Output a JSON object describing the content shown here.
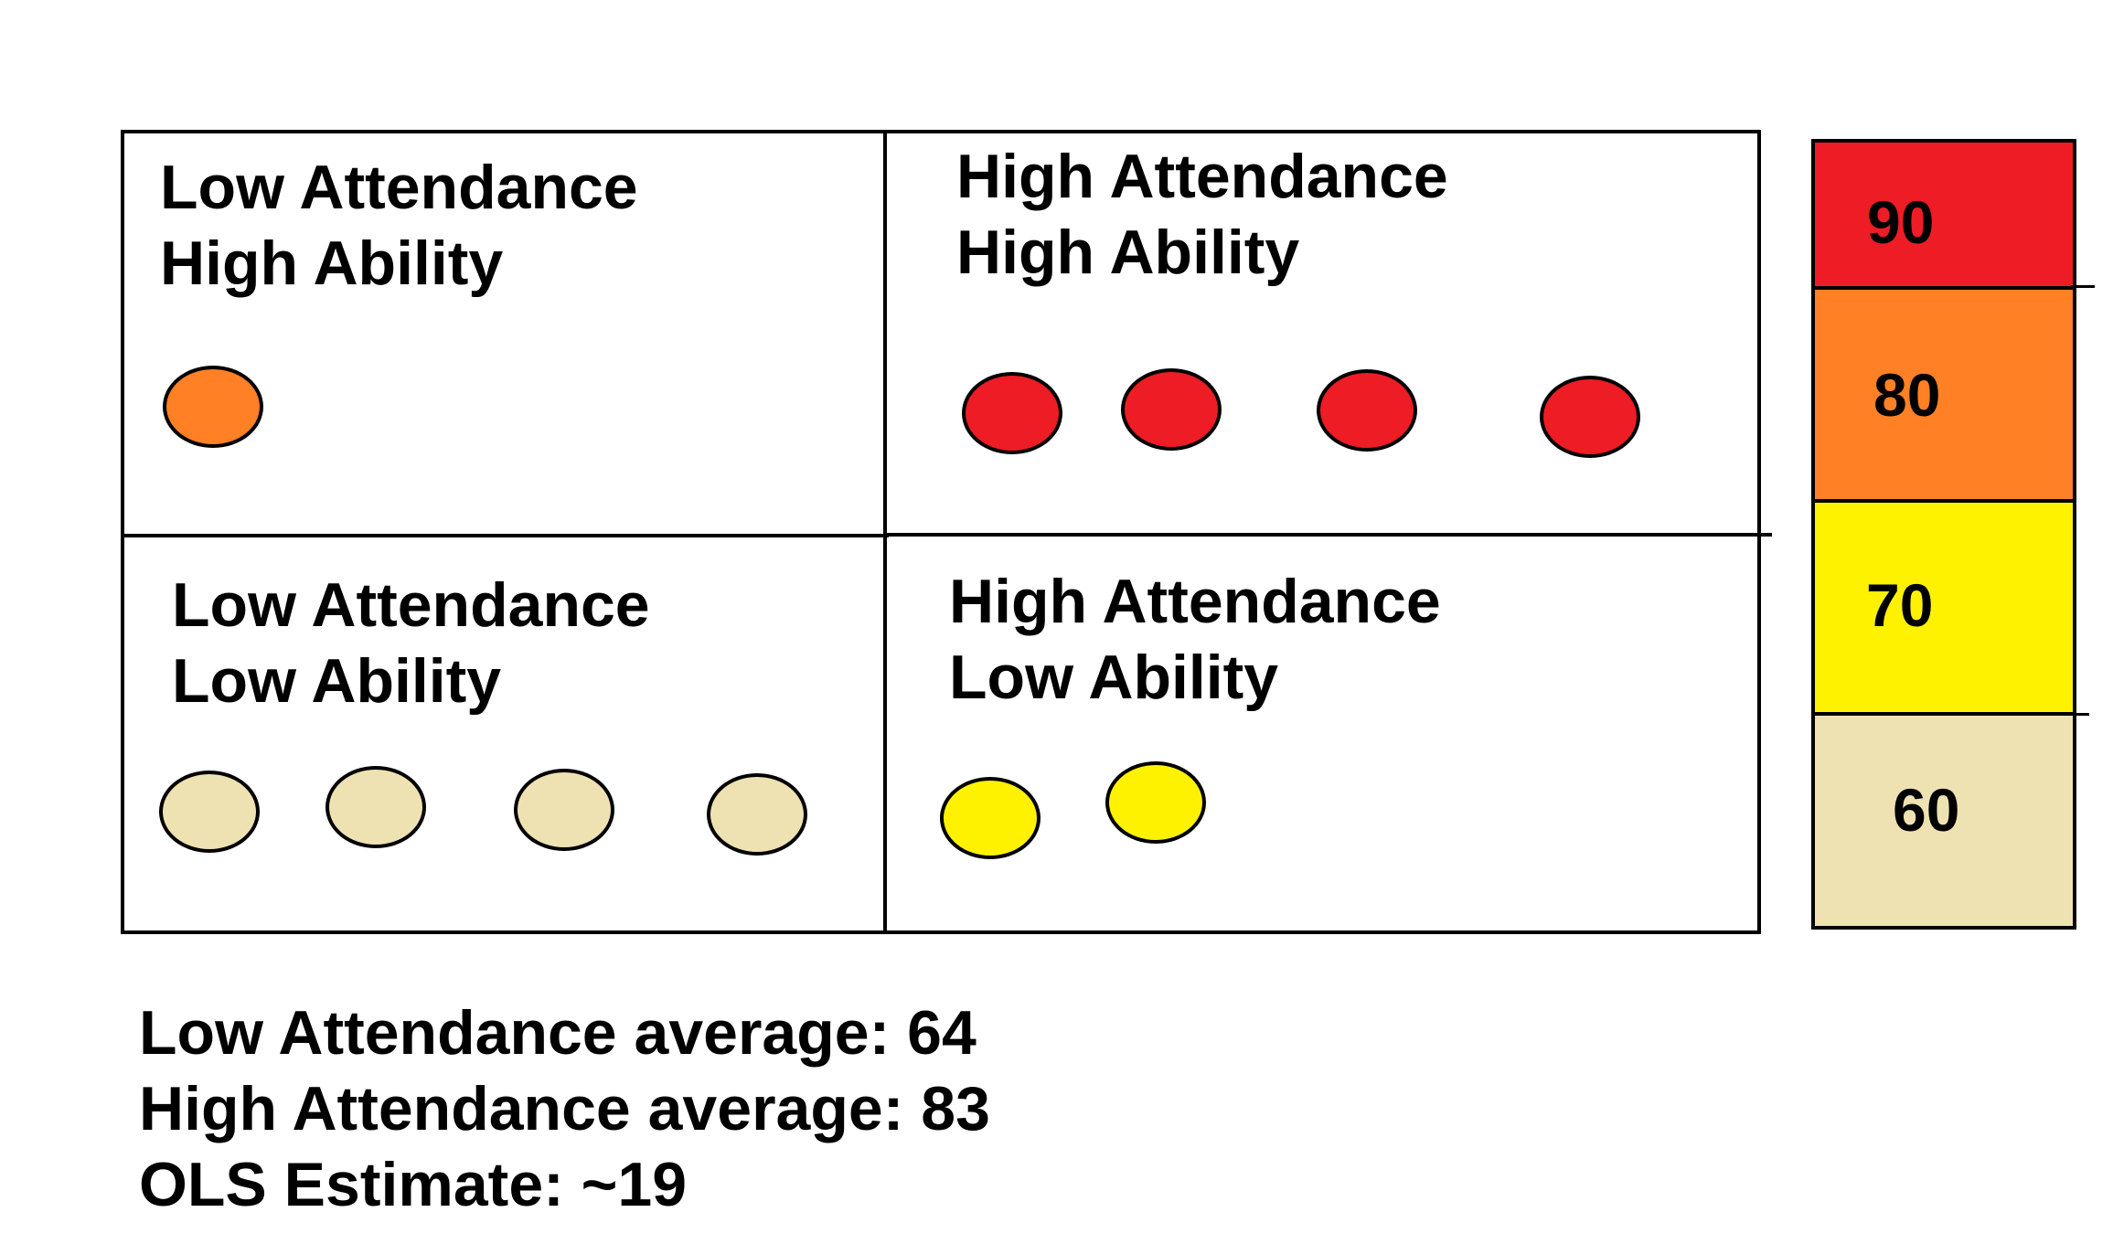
{
  "quadrants": {
    "top_left": {
      "line1": "Low Attendance",
      "line2": "High Ability",
      "dots": [
        {
          "score_color": "#FF8025"
        }
      ]
    },
    "top_right": {
      "line1": "High Attendance",
      "line2": "High Ability",
      "dots": [
        {
          "score_color": "#EE1C24"
        },
        {
          "score_color": "#EE1C24"
        },
        {
          "score_color": "#EE1C24"
        },
        {
          "score_color": "#EE1C24"
        }
      ]
    },
    "bottom_left": {
      "line1": "Low Attendance",
      "line2": "Low Ability",
      "dots": [
        {
          "score_color": "#EEE2B2"
        },
        {
          "score_color": "#EEE2B2"
        },
        {
          "score_color": "#EEE2B2"
        },
        {
          "score_color": "#EEE2B2"
        }
      ]
    },
    "bottom_right": {
      "line1": "High Attendance",
      "line2": "Low Ability",
      "dots": [
        {
          "score_color": "#FFF200"
        },
        {
          "score_color": "#FFF200"
        }
      ]
    }
  },
  "scale": [
    {
      "value": "90",
      "color": "#EE1C24"
    },
    {
      "value": "80",
      "color": "#FF8025"
    },
    {
      "value": "70",
      "color": "#FFF200"
    },
    {
      "value": "60",
      "color": "#EEE2B2"
    }
  ],
  "summary": {
    "low_attendance_average": "Low Attendance average: 64",
    "high_attendance_average": "High Attendance average: 83",
    "ols_estimate": "OLS Estimate: ~19"
  }
}
